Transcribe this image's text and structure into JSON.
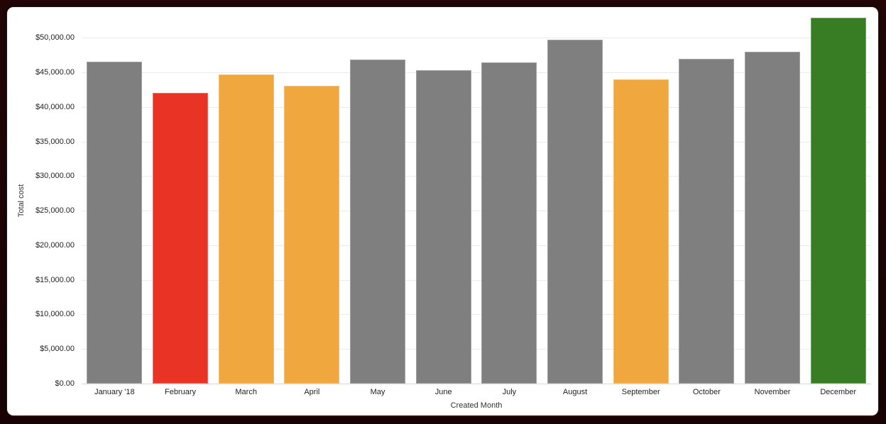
{
  "frame": {
    "border_color": "#1e0405",
    "card_background": "#ffffff"
  },
  "chart_data": {
    "type": "bar",
    "title": "",
    "xlabel": "Created Month",
    "ylabel": "Total cost",
    "categories": [
      "January '18",
      "February",
      "March",
      "April",
      "May",
      "June",
      "July",
      "August",
      "September",
      "October",
      "November",
      "December"
    ],
    "values": [
      46500,
      42000,
      44700,
      43100,
      46900,
      45300,
      46400,
      49700,
      44000,
      47000,
      48000,
      52900
    ],
    "bar_colors": [
      "#7f7f7f",
      "#e93324",
      "#f0a73d",
      "#f0a73d",
      "#7f7f7f",
      "#7f7f7f",
      "#7f7f7f",
      "#7f7f7f",
      "#f0a73d",
      "#7f7f7f",
      "#7f7f7f",
      "#387d23"
    ],
    "ylim": [
      0,
      52900
    ],
    "y_ticks": [
      0,
      5000,
      10000,
      15000,
      20000,
      25000,
      30000,
      35000,
      40000,
      45000,
      50000
    ],
    "y_tick_labels": [
      "$0.00",
      "$5,000.00",
      "$10,000.00",
      "$15,000.00",
      "$20,000.00",
      "$25,000.00",
      "$30,000.00",
      "$35,000.00",
      "$40,000.00",
      "$45,000.00",
      "$50,000.00"
    ],
    "grid": true,
    "legend": "none",
    "palette": {
      "gray": "#7f7f7f",
      "red": "#e93324",
      "orange": "#f0a73d",
      "green": "#387d23",
      "gridline": "#ececec",
      "baseline": "#d8d8d8",
      "axis_text": "#1f1f1f"
    }
  }
}
